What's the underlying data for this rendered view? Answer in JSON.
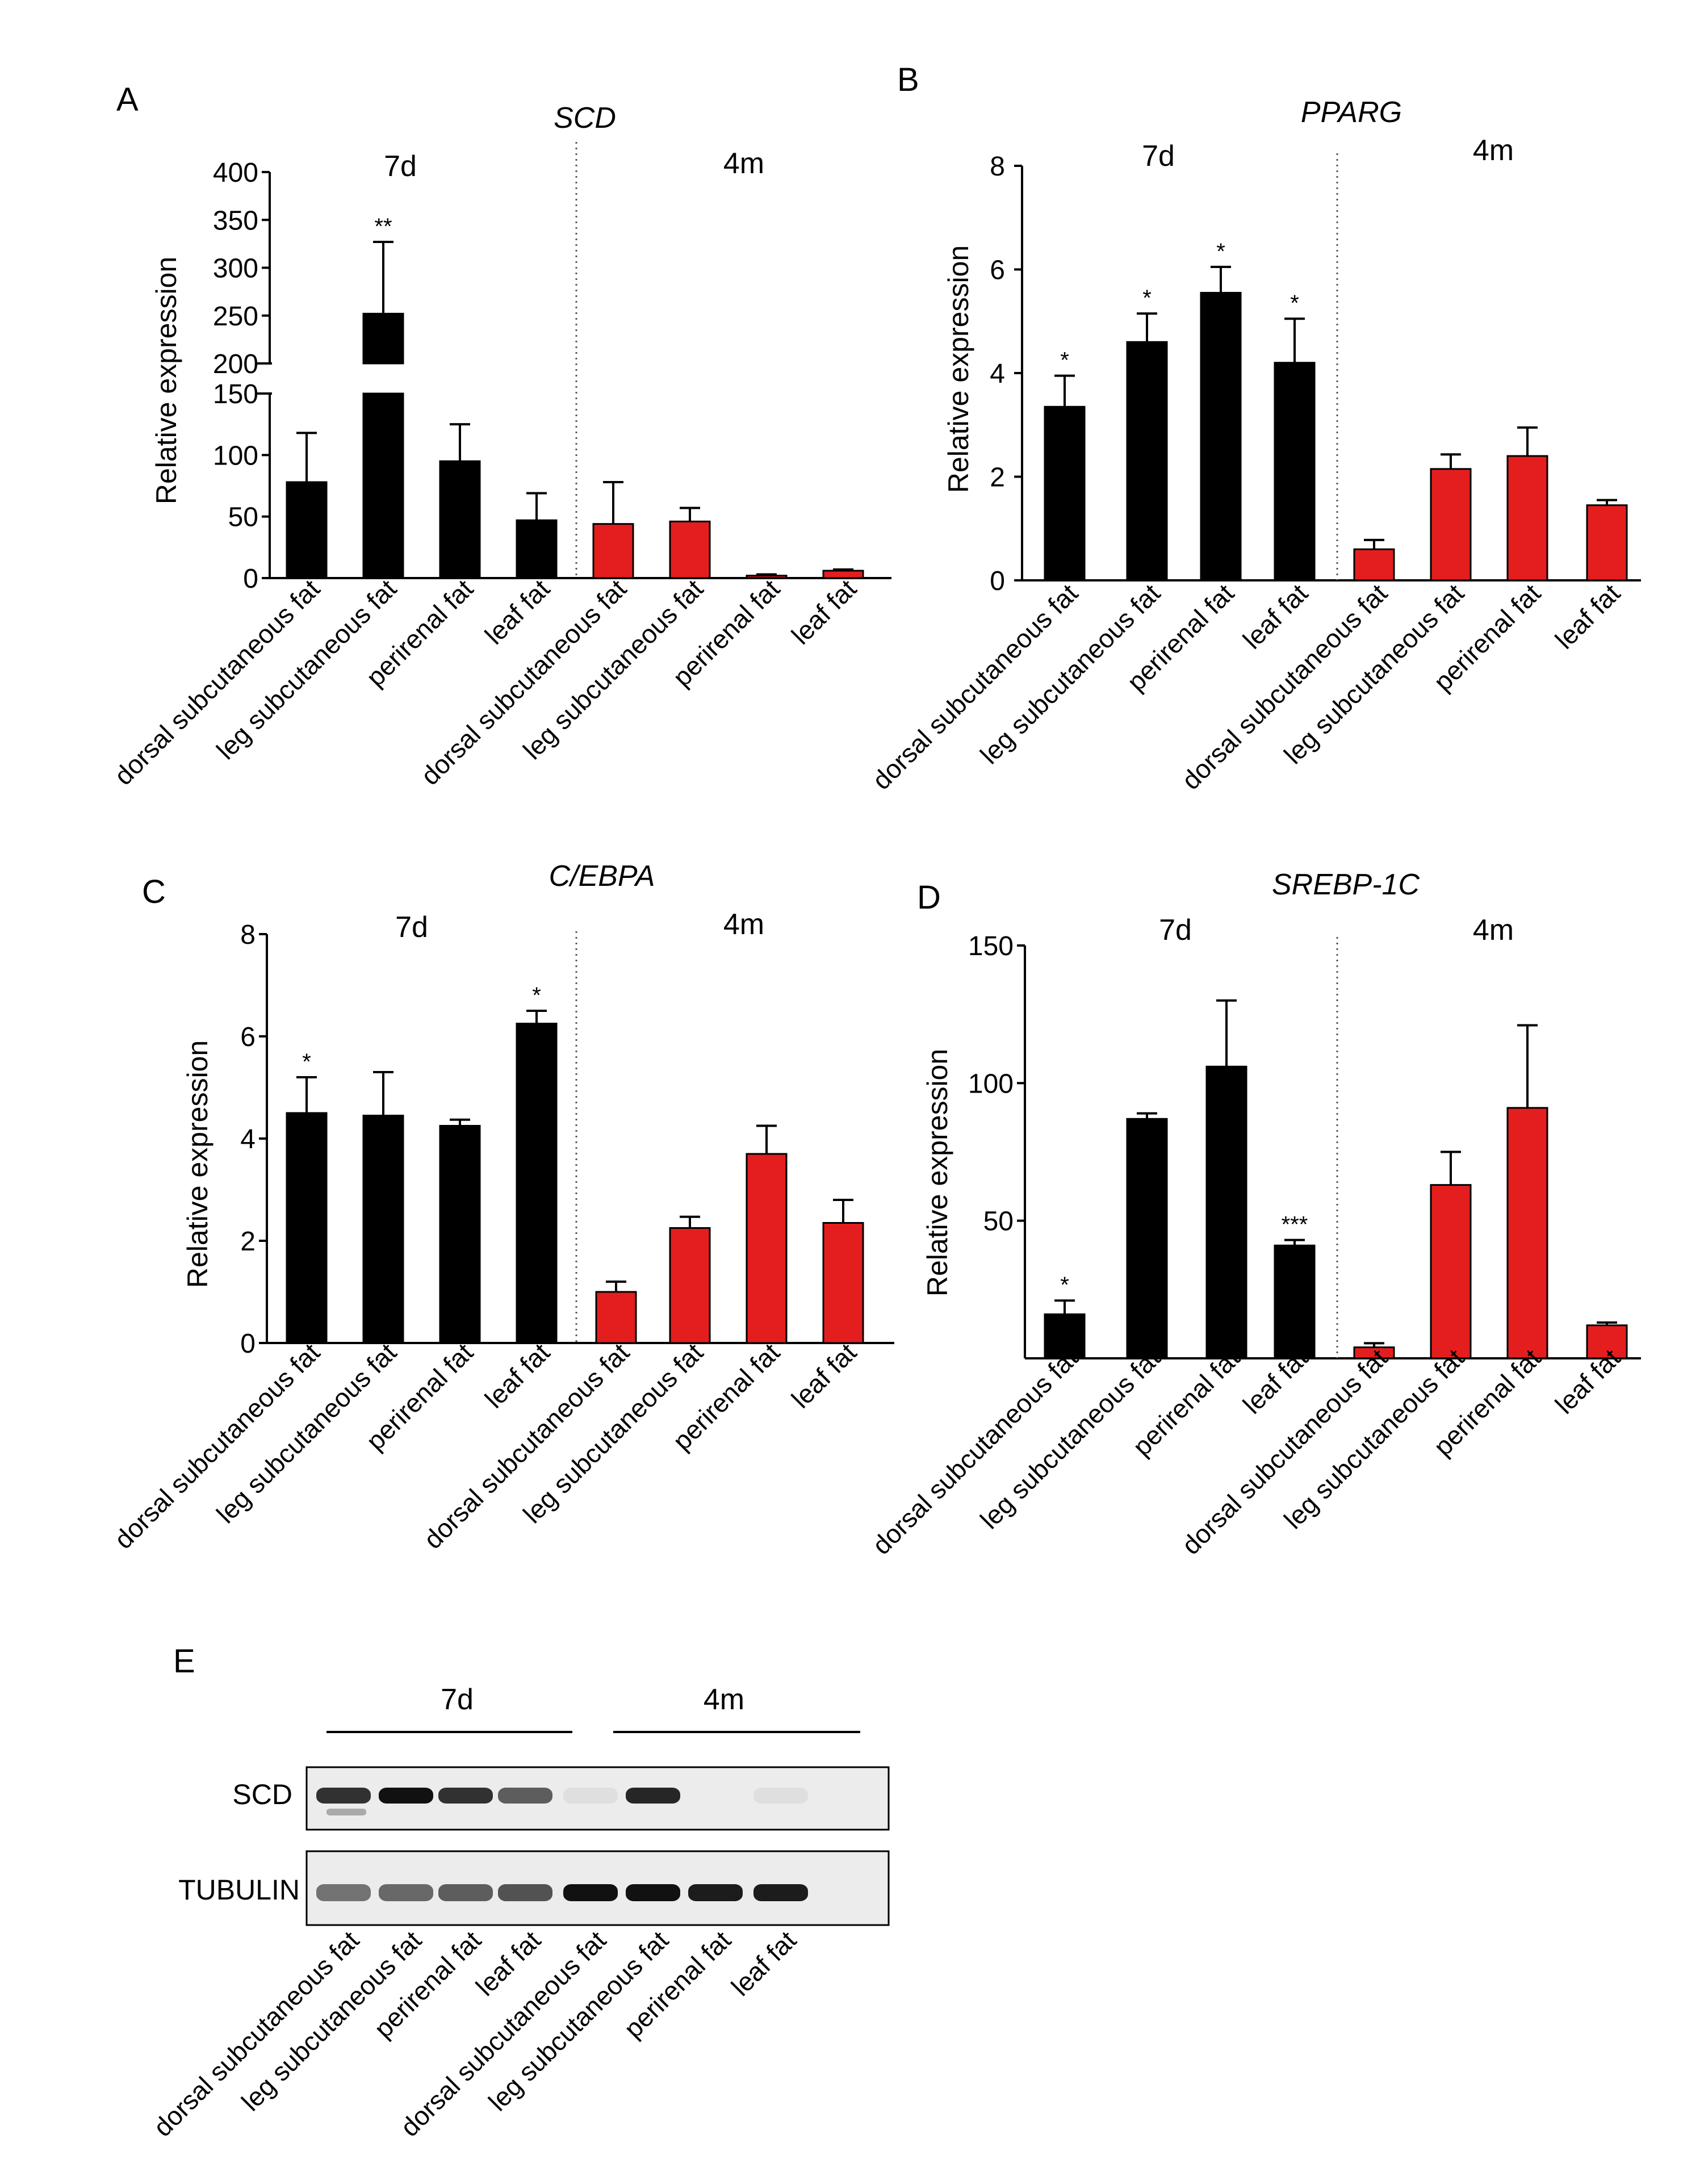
{
  "colors": {
    "group_7d": "#000000",
    "group_4m": "#e41e1e",
    "axis": "#000000",
    "divider": "#555555"
  },
  "chart_data": [
    {
      "panel": "A",
      "type": "bar",
      "title": "SCD",
      "ylabel": "Relative expression",
      "groups": [
        "7d",
        "4m"
      ],
      "categories": [
        "dorsal subcutaneous fat",
        "leg subcutaneous fat",
        "perirenal fat",
        "leaf fat",
        "dorsal subcutaneous fat",
        "leg subcutaneous fat",
        "perirenal fat",
        "leaf fat"
      ],
      "values": [
        78,
        252,
        95,
        47,
        44,
        46,
        2,
        6
      ],
      "errors": [
        40,
        75,
        30,
        22,
        34,
        11,
        1,
        1
      ],
      "significance": [
        "",
        "**",
        "",
        "",
        "",
        "",
        "",
        ""
      ],
      "ylim": [
        0,
        400
      ],
      "axis_break": [
        150,
        200
      ],
      "yticks_lower": [
        0,
        50,
        100,
        150
      ],
      "yticks_upper": [
        200,
        250,
        300,
        350,
        400
      ]
    },
    {
      "panel": "B",
      "type": "bar",
      "title": "PPARG",
      "ylabel": "Relative expression",
      "groups": [
        "7d",
        "4m"
      ],
      "categories": [
        "dorsal subcutaneous fat",
        "leg subcutaneous fat",
        "perirenal fat",
        "leaf fat",
        "dorsal subcutaneous fat",
        "leg subcutaneous fat",
        "perirenal fat",
        "leaf fat"
      ],
      "values": [
        3.35,
        4.6,
        5.55,
        4.2,
        0.6,
        2.15,
        2.4,
        1.45
      ],
      "errors": [
        0.6,
        0.55,
        0.5,
        0.85,
        0.18,
        0.28,
        0.55,
        0.1
      ],
      "significance": [
        "*",
        "*",
        "*",
        "*",
        "",
        "",
        "",
        ""
      ],
      "ylim": [
        0,
        8
      ],
      "yticks": [
        0,
        2,
        4,
        6,
        8
      ]
    },
    {
      "panel": "C",
      "type": "bar",
      "title": "C/EBPA",
      "ylabel": "Relative expression",
      "groups": [
        "7d",
        "4m"
      ],
      "categories": [
        "dorsal subcutaneous fat",
        "leg subcutaneous fat",
        "perirenal fat",
        "leaf fat",
        "dorsal subcutaneous fat",
        "leg subcutaneous fat",
        "perirenal fat",
        "leaf fat"
      ],
      "values": [
        4.5,
        4.45,
        4.25,
        6.25,
        1.0,
        2.25,
        3.7,
        2.35
      ],
      "errors": [
        0.7,
        0.85,
        0.12,
        0.25,
        0.2,
        0.22,
        0.55,
        0.45
      ],
      "significance": [
        "*",
        "",
        "",
        "*",
        "",
        "",
        "",
        ""
      ],
      "ylim": [
        0,
        8
      ],
      "yticks": [
        0,
        2,
        4,
        6,
        8
      ]
    },
    {
      "panel": "D",
      "type": "bar",
      "title": "SREBP-1C",
      "ylabel": "Relative expression",
      "groups": [
        "7d",
        "4m"
      ],
      "categories": [
        "dorsal subcutaneous fat",
        "leg subcutaneous fat",
        "perirenal fat",
        "leaf fat",
        "dorsal subcutaneous fat",
        "leg subcutaneous fat",
        "perirenal fat",
        "leaf fat"
      ],
      "values": [
        16,
        87,
        106,
        41,
        4,
        63,
        91,
        12
      ],
      "errors": [
        5,
        2,
        24,
        2,
        1.5,
        12,
        30,
        1
      ],
      "significance": [
        "*",
        "",
        "",
        "***",
        "",
        "",
        "",
        ""
      ],
      "ylim": [
        0,
        150
      ],
      "yticks": [
        50,
        100,
        150
      ]
    }
  ],
  "blot": {
    "panel": "E",
    "groups": [
      "7d",
      "4m"
    ],
    "rows": [
      {
        "label": "SCD",
        "intensities": [
          0.85,
          1.0,
          0.85,
          0.65,
          0.06,
          0.9,
          0.0,
          0.06
        ]
      },
      {
        "label": "TUBULIN",
        "intensities": [
          0.55,
          0.6,
          0.65,
          0.7,
          1.0,
          1.0,
          0.95,
          0.95
        ]
      }
    ],
    "lanes": [
      "dorsal subcutaneous fat",
      "leg subcutaneous fat",
      "perirenal fat",
      "leaf fat",
      "dorsal subcutaneous fat",
      "leg subcutaneous fat",
      "perirenal fat",
      "leaf fat"
    ]
  }
}
